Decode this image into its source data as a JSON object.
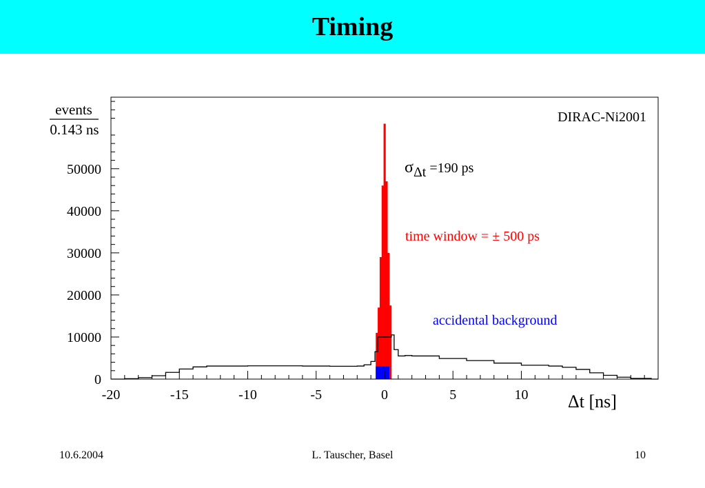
{
  "slide": {
    "title": "Timing",
    "footer_date": "10.6.2004",
    "footer_author": "L. Tauscher, Basel",
    "footer_page": "10",
    "title_bar_color": "#00ffff"
  },
  "chart_data": {
    "type": "histogram",
    "ylabel_numerator": "events",
    "ylabel_denominator": "0.143 ns",
    "xlabel_delta": "Δ",
    "xlabel_rest": "t [ns]",
    "xlim": [
      -20,
      20
    ],
    "ylim": [
      0,
      67000
    ],
    "x_ticks": [
      -20,
      -15,
      -10,
      -5,
      0,
      5,
      10
    ],
    "x_tick_labels": [
      "-20",
      "-15",
      "-10",
      "-5",
      "0",
      "5",
      "10"
    ],
    "y_ticks": [
      0,
      10000,
      20000,
      30000,
      40000,
      50000
    ],
    "y_tick_labels": [
      "0",
      "10000",
      "20000",
      "30000",
      "40000",
      "50000"
    ],
    "grid": false,
    "annotations": {
      "dataset": "DIRAC-Ni2001",
      "sigma_symbol": "σ",
      "sigma_subscript": "Δt",
      "sigma_value": " =190 ps",
      "time_window": "time window = ± 500 ps",
      "accidental": "accidental background"
    },
    "colors": {
      "histogram_line": "#000000",
      "time_window_fill": "#ff0000",
      "time_window_text": "#ff0000",
      "background_fill": "#0000ff",
      "background_text": "#0000ff"
    },
    "envelope": [
      {
        "x": -20,
        "y": 0
      },
      {
        "x": -19,
        "y": 100
      },
      {
        "x": -18,
        "y": 350
      },
      {
        "x": -17,
        "y": 800
      },
      {
        "x": -16,
        "y": 1600
      },
      {
        "x": -15,
        "y": 2400
      },
      {
        "x": -14,
        "y": 2900
      },
      {
        "x": -13,
        "y": 3100
      },
      {
        "x": -12,
        "y": 3100
      },
      {
        "x": -10,
        "y": 3150
      },
      {
        "x": -8,
        "y": 3150
      },
      {
        "x": -6,
        "y": 3100
      },
      {
        "x": -4,
        "y": 3050
      },
      {
        "x": -2,
        "y": 3100
      },
      {
        "x": -1.5,
        "y": 3400
      },
      {
        "x": -1.0,
        "y": 4200
      },
      {
        "x": -0.7,
        "y": 6500
      },
      {
        "x": -0.5,
        "y": 10000
      },
      {
        "x": 0.5,
        "y": 10500
      },
      {
        "x": 0.7,
        "y": 7000
      },
      {
        "x": 1.0,
        "y": 5500
      },
      {
        "x": 1.5,
        "y": 5600
      },
      {
        "x": 2,
        "y": 5500
      },
      {
        "x": 4,
        "y": 4900
      },
      {
        "x": 6,
        "y": 4400
      },
      {
        "x": 8,
        "y": 3800
      },
      {
        "x": 10,
        "y": 3300
      },
      {
        "x": 12,
        "y": 3100
      },
      {
        "x": 13,
        "y": 2800
      },
      {
        "x": 14,
        "y": 2300
      },
      {
        "x": 15,
        "y": 1500
      },
      {
        "x": 16,
        "y": 900
      },
      {
        "x": 17,
        "y": 450
      },
      {
        "x": 18,
        "y": 150
      },
      {
        "x": 19.5,
        "y": 0
      }
    ],
    "time_window_bins": [
      {
        "x0": -0.643,
        "x1": -0.5,
        "y": 11000
      },
      {
        "x0": -0.5,
        "x1": -0.357,
        "y": 17000
      },
      {
        "x0": -0.357,
        "x1": -0.214,
        "y": 29000
      },
      {
        "x0": -0.214,
        "x1": -0.071,
        "y": 46000
      },
      {
        "x0": -0.071,
        "x1": 0.071,
        "y": 60700
      },
      {
        "x0": 0.071,
        "x1": 0.214,
        "y": 47000
      },
      {
        "x0": 0.214,
        "x1": 0.357,
        "y": 30000
      },
      {
        "x0": 0.357,
        "x1": 0.5,
        "y": 17500
      }
    ],
    "background_band": {
      "x0": -0.643,
      "x1": 0.357,
      "y": 3000
    }
  }
}
